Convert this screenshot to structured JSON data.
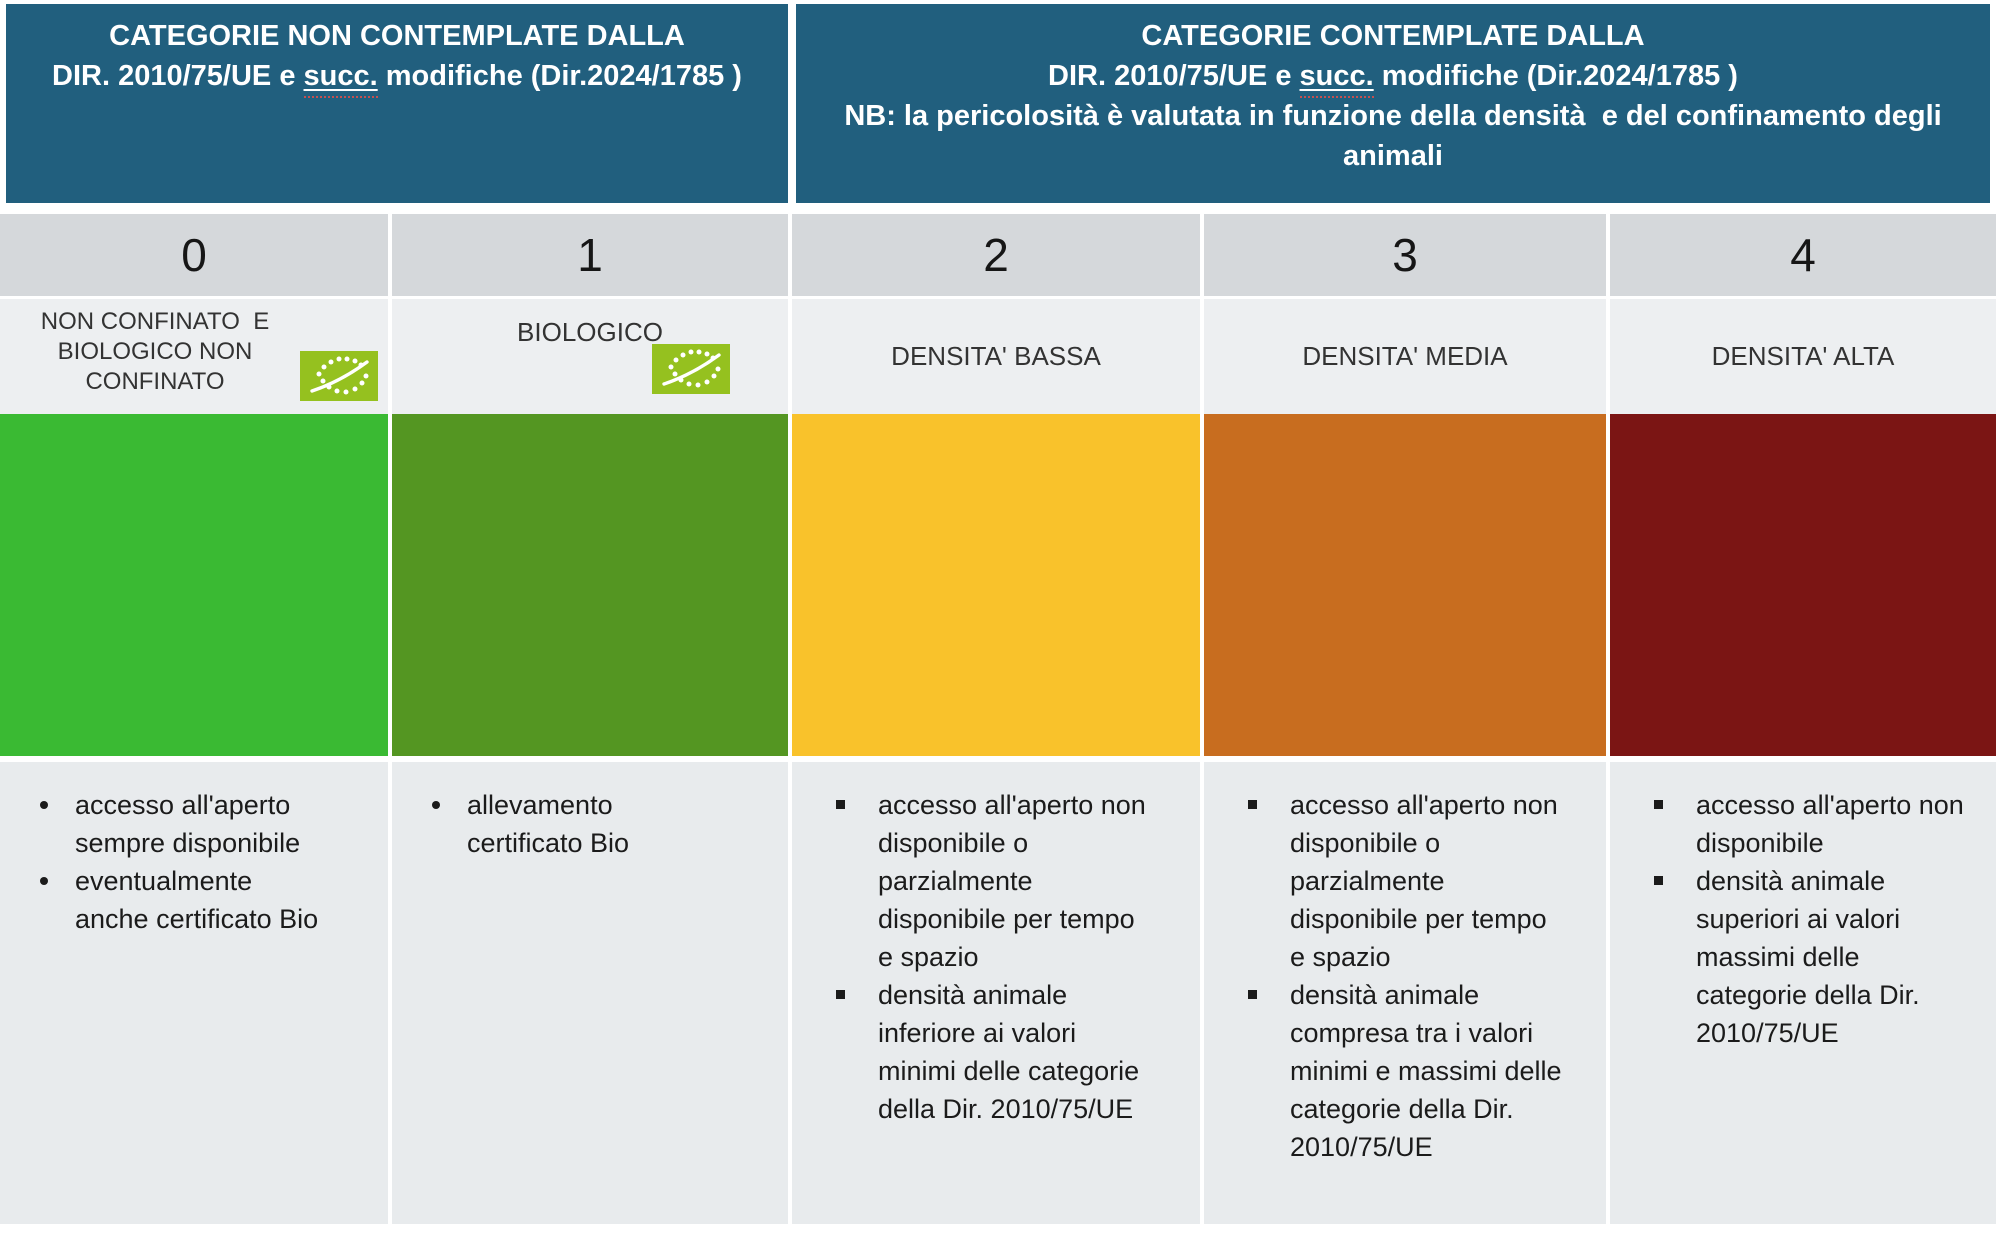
{
  "colors": {
    "header_bg": "#215F7E",
    "number_row_bg": "#D5D8DB",
    "label_row_bg": "#EDEFF1",
    "details_bg": "#E8EBED",
    "spellcheck_underline": "#C65050",
    "bio_logo_green": "#95C11F",
    "category_colors": [
      "#3ABA33",
      "#549622",
      "#F9C22B",
      "#C86D1F",
      "#7B1514"
    ]
  },
  "header": {
    "left": {
      "line1": "CATEGORIE NON CONTEMPLATE DALLA",
      "line2_pre": "DIR. 2010/75/UE e ",
      "line2_marked": "succ.",
      "line2_post": " modifiche (Dir.2024/1785 )"
    },
    "right": {
      "line1": "CATEGORIE CONTEMPLATE DALLA",
      "line2_pre": "DIR. 2010/75/UE e ",
      "line2_marked": "succ.",
      "line2_post": " modifiche (Dir.2024/1785 )",
      "line3a": "NB: la pericolosità è valutata in funzione della densità  e del confinamento degli",
      "line3b": "animali"
    }
  },
  "columns": [
    {
      "number": "0",
      "label_lines": [
        "NON CONFINATO  E",
        "BIOLOGICO NON",
        "CONFINATO"
      ],
      "bio_logo": true,
      "block_color": "#3ABA33",
      "bullet_style": "disc",
      "bullets": [
        {
          "lines": [
            "accesso all'aperto",
            "sempre disponibile"
          ]
        },
        {
          "lines": [
            "eventualmente",
            "anche certificato Bio"
          ]
        }
      ]
    },
    {
      "number": "1",
      "label_lines": [
        "BIOLOGICO"
      ],
      "bio_logo": true,
      "block_color": "#549622",
      "bullet_style": "disc",
      "bullets": [
        {
          "lines": [
            "allevamento",
            "certificato Bio"
          ]
        }
      ]
    },
    {
      "number": "2",
      "label_lines": [
        "DENSITA' BASSA"
      ],
      "bio_logo": false,
      "block_color": "#F9C22B",
      "bullet_style": "square",
      "bullets": [
        {
          "lines": [
            "accesso all'aperto non",
            "disponibile o",
            "parzialmente",
            "disponibile per tempo",
            "e spazio"
          ]
        },
        {
          "lines": [
            "densità animale",
            "inferiore ai valori",
            "minimi delle categorie",
            "della Dir. 2010/75/UE"
          ]
        }
      ]
    },
    {
      "number": "3",
      "label_lines": [
        "DENSITA' MEDIA"
      ],
      "bio_logo": false,
      "block_color": "#C86D1F",
      "bullet_style": "square",
      "bullets": [
        {
          "lines": [
            "accesso all'aperto non",
            "disponibile o",
            "parzialmente",
            "disponibile per tempo",
            "e spazio"
          ]
        },
        {
          "lines": [
            "densità animale",
            "compresa tra i valori",
            "minimi e massimi delle",
            "categorie della Dir.",
            "2010/75/UE"
          ]
        }
      ]
    },
    {
      "number": "4",
      "label_lines": [
        "DENSITA' ALTA"
      ],
      "bio_logo": false,
      "block_color": "#7B1514",
      "bullet_style": "square",
      "bullets": [
        {
          "lines": [
            "accesso all'aperto non",
            "disponibile"
          ]
        },
        {
          "lines": [
            "densità animale",
            "superiori ai valori",
            "massimi delle",
            "categorie della Dir.",
            "2010/75/UE"
          ]
        }
      ]
    }
  ]
}
